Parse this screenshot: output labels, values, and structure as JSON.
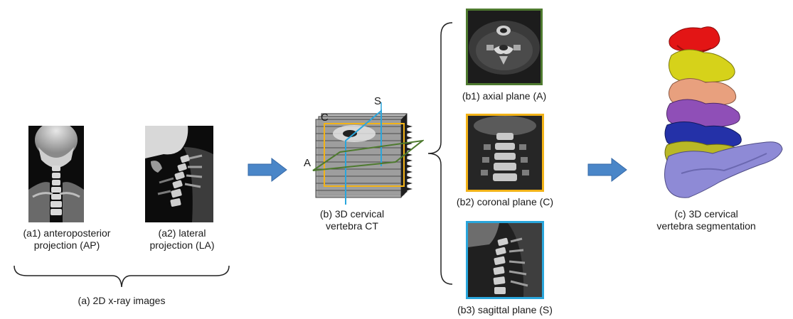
{
  "xray": {
    "ap_caption_line1": "(a1) anteroposterior",
    "ap_caption_line2": "projection (AP)",
    "la_caption_line1": "(a2) lateral",
    "la_caption_line2": "projection (LA)",
    "group_caption": "(a) 2D x-ray images"
  },
  "ct": {
    "caption_line1": "(b) 3D  cervical",
    "caption_line2": "vertebra CT",
    "label_s": "S",
    "label_c": "C",
    "label_a": "A"
  },
  "planes": {
    "axial_caption": "(b1) axial plane (A)",
    "coronal_caption": "(b2) coronal plane (C)",
    "sagittal_caption": "(b3) sagittal plane (S)"
  },
  "segmentation": {
    "caption_line1": "(c) 3D  cervical",
    "caption_line2": "vertebra segmentation"
  },
  "colors": {
    "arrow": "#4a86c8",
    "axial_frame": "#4e7a2f",
    "coronal_frame": "#f2b318",
    "sagittal_frame": "#2aa6dc",
    "vertebra_red": "#e31515",
    "vertebra_yellow": "#d6d21a",
    "vertebra_salmon": "#e8a07e",
    "vertebra_purple": "#8f4fb7",
    "vertebra_blue": "#2431a8",
    "vertebra_olive": "#b9b826",
    "vertebra_lavender": "#8e8ad6"
  }
}
